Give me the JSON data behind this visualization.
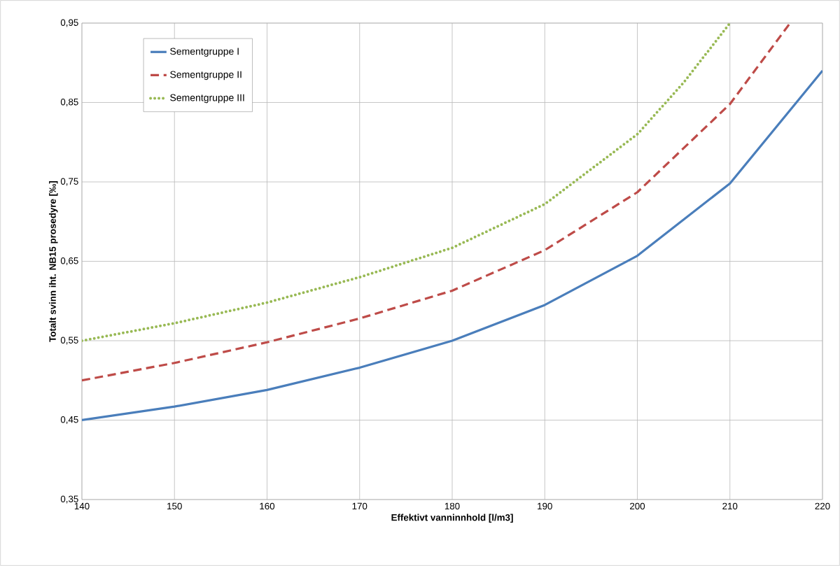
{
  "chart_data": {
    "type": "line",
    "xlabel": "Effektivt vanninnhold  [l/m3]",
    "ylabel": "Totalt svinn iht. NB15 prosedyre [‰]",
    "xlim": [
      140,
      220
    ],
    "xticks": [
      140,
      150,
      160,
      170,
      180,
      190,
      200,
      210,
      220
    ],
    "ylim": [
      0.35,
      0.95
    ],
    "yticks": [
      {
        "value": 0.35,
        "label": "0,35"
      },
      {
        "value": 0.45,
        "label": "0,45"
      },
      {
        "value": 0.55,
        "label": "0,55"
      },
      {
        "value": 0.65,
        "label": "0,65"
      },
      {
        "value": 0.75,
        "label": "0,75"
      },
      {
        "value": 0.85,
        "label": "0,85"
      },
      {
        "value": 0.95,
        "label": "0,95"
      }
    ],
    "grid": true,
    "legend": "top left",
    "marker": "none",
    "series": [
      {
        "name": "Sementgruppe I",
        "color": "#4a7ebb",
        "line_style": "solid",
        "x": [
          140,
          150,
          160,
          170,
          180,
          190,
          200,
          210,
          220
        ],
        "values": [
          0.45,
          0.467,
          0.488,
          0.516,
          0.55,
          0.595,
          0.657,
          0.748,
          0.89
        ]
      },
      {
        "name": "Sementgruppe II",
        "color": "#be4b48",
        "line_style": "dashed",
        "x": [
          140,
          150,
          160,
          170,
          180,
          190,
          200,
          210,
          216.5
        ],
        "values": [
          0.5,
          0.522,
          0.548,
          0.578,
          0.613,
          0.664,
          0.737,
          0.848,
          0.95
        ]
      },
      {
        "name": "Sementgruppe III",
        "color": "#98b954",
        "line_style": "dotted",
        "x": [
          140,
          150,
          160,
          170,
          180,
          190,
          200,
          205,
          210
        ],
        "values": [
          0.55,
          0.572,
          0.598,
          0.63,
          0.667,
          0.722,
          0.81,
          0.875,
          0.95
        ]
      }
    ]
  }
}
